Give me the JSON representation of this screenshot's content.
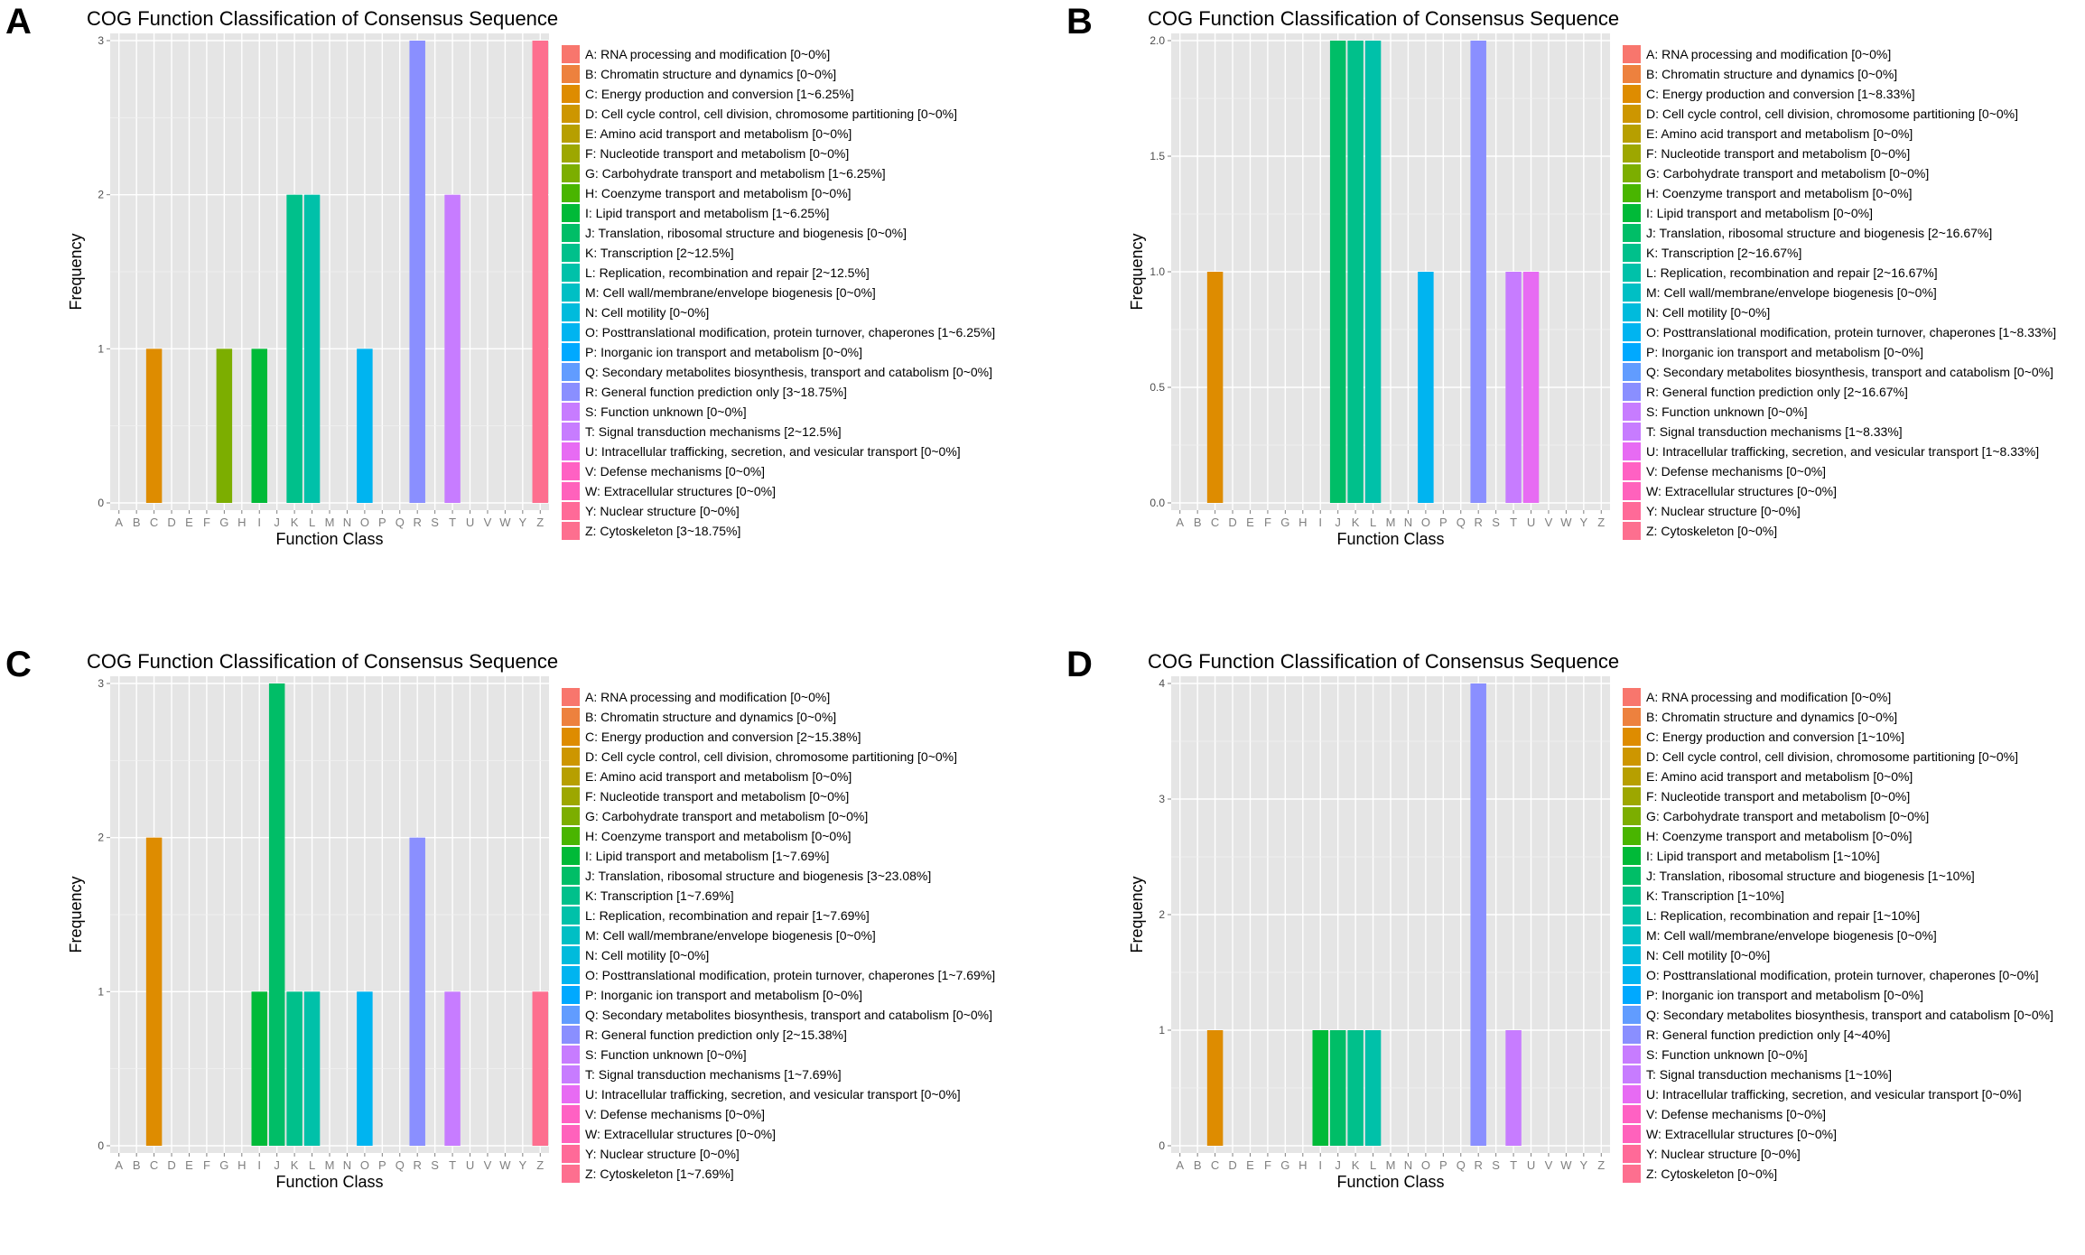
{
  "figure": {
    "colors": {
      "A": "#f8766d",
      "B": "#ed813e",
      "C": "#de8c00",
      "D": "#cd9600",
      "E": "#b79f00",
      "F": "#9da700",
      "G": "#7cae00",
      "H": "#49b500",
      "I": "#00ba38",
      "J": "#00be67",
      "K": "#00c08b",
      "L": "#00c1a9",
      "M": "#00bfc4",
      "N": "#00bbdc",
      "O": "#00b4f0",
      "P": "#00a9ff",
      "Q": "#619cff",
      "R": "#8a8fff",
      "S": "#c77cff",
      "T": "#c77cff",
      "U": "#e76bf3",
      "V": "#ff61c3",
      "W": "#ff62bc",
      "X": "#ff65ac",
      "Y": "#ff6a98",
      "Z": "#fd6f8f"
    }
  },
  "chart_data": [
    {
      "panel_letter": "A",
      "type": "bar",
      "title": "COG Function Classification of Consensus Sequence",
      "xlabel": "Function Class",
      "ylabel": "Frequency",
      "categories": [
        "A",
        "B",
        "C",
        "D",
        "E",
        "F",
        "G",
        "H",
        "I",
        "J",
        "K",
        "L",
        "M",
        "N",
        "O",
        "P",
        "Q",
        "R",
        "S",
        "T",
        "U",
        "V",
        "W",
        "Y",
        "Z"
      ],
      "values": [
        0,
        0,
        1,
        0,
        0,
        0,
        1,
        0,
        1,
        0,
        2,
        2,
        0,
        0,
        1,
        0,
        0,
        3,
        0,
        2,
        0,
        0,
        0,
        0,
        3
      ],
      "ylim": [
        0,
        3
      ],
      "yticks": [
        "0",
        "1",
        "2",
        "3"
      ],
      "legend": [
        "A: RNA processing and modification [0~0%]",
        "B: Chromatin structure and dynamics [0~0%]",
        "C: Energy production and conversion [1~6.25%]",
        "D: Cell cycle control, cell division, chromosome partitioning [0~0%]",
        "E: Amino acid transport and metabolism [0~0%]",
        "F: Nucleotide transport and metabolism [0~0%]",
        "G: Carbohydrate transport and metabolism [1~6.25%]",
        "H: Coenzyme transport and metabolism [0~0%]",
        "I: Lipid transport and metabolism [1~6.25%]",
        "J: Translation, ribosomal structure and biogenesis [0~0%]",
        "K: Transcription [2~12.5%]",
        "L: Replication, recombination and repair [2~12.5%]",
        "M: Cell wall/membrane/envelope biogenesis [0~0%]",
        "N: Cell motility [0~0%]",
        "O: Posttranslational modification, protein turnover, chaperones [1~6.25%]",
        "P: Inorganic ion transport and metabolism [0~0%]",
        "Q: Secondary metabolites biosynthesis, transport and catabolism [0~0%]",
        "R: General function prediction only [3~18.75%]",
        "S: Function unknown [0~0%]",
        "T: Signal transduction mechanisms [2~12.5%]",
        "U: Intracellular trafficking, secretion, and vesicular transport [0~0%]",
        "V: Defense mechanisms [0~0%]",
        "W: Extracellular structures [0~0%]",
        "Y: Nuclear structure [0~0%]",
        "Z: Cytoskeleton [3~18.75%]"
      ]
    },
    {
      "panel_letter": "B",
      "type": "bar",
      "title": "COG Function Classification of Consensus Sequence",
      "xlabel": "Function Class",
      "ylabel": "Frequency",
      "categories": [
        "A",
        "B",
        "C",
        "D",
        "E",
        "F",
        "G",
        "H",
        "I",
        "J",
        "K",
        "L",
        "M",
        "N",
        "O",
        "P",
        "Q",
        "R",
        "S",
        "T",
        "U",
        "V",
        "W",
        "Y",
        "Z"
      ],
      "values": [
        0,
        0,
        1,
        0,
        0,
        0,
        0,
        0,
        0,
        2,
        2,
        2,
        0,
        0,
        1,
        0,
        0,
        2,
        0,
        1,
        1,
        0,
        0,
        0,
        0
      ],
      "ylim": [
        0,
        2
      ],
      "yticks": [
        "0.0",
        "0.5",
        "1.0",
        "1.5",
        "2.0"
      ],
      "legend": [
        "A: RNA processing and modification [0~0%]",
        "B: Chromatin structure and dynamics [0~0%]",
        "C: Energy production and conversion [1~8.33%]",
        "D: Cell cycle control, cell division, chromosome partitioning [0~0%]",
        "E: Amino acid transport and metabolism [0~0%]",
        "F: Nucleotide transport and metabolism [0~0%]",
        "G: Carbohydrate transport and metabolism [0~0%]",
        "H: Coenzyme transport and metabolism [0~0%]",
        "I: Lipid transport and metabolism [0~0%]",
        "J: Translation, ribosomal structure and biogenesis [2~16.67%]",
        "K: Transcription [2~16.67%]",
        "L: Replication, recombination and repair [2~16.67%]",
        "M: Cell wall/membrane/envelope biogenesis [0~0%]",
        "N: Cell motility [0~0%]",
        "O: Posttranslational modification, protein turnover, chaperones [1~8.33%]",
        "P: Inorganic ion transport and metabolism [0~0%]",
        "Q: Secondary metabolites biosynthesis, transport and catabolism [0~0%]",
        "R: General function prediction only [2~16.67%]",
        "S: Function unknown [0~0%]",
        "T: Signal transduction mechanisms [1~8.33%]",
        "U: Intracellular trafficking, secretion, and vesicular transport [1~8.33%]",
        "V: Defense mechanisms [0~0%]",
        "W: Extracellular structures [0~0%]",
        "Y: Nuclear structure [0~0%]",
        "Z: Cytoskeleton [0~0%]"
      ]
    },
    {
      "panel_letter": "C",
      "type": "bar",
      "title": "COG Function Classification of Consensus Sequence",
      "xlabel": "Function Class",
      "ylabel": "Frequency",
      "categories": [
        "A",
        "B",
        "C",
        "D",
        "E",
        "F",
        "G",
        "H",
        "I",
        "J",
        "K",
        "L",
        "M",
        "N",
        "O",
        "P",
        "Q",
        "R",
        "S",
        "T",
        "U",
        "V",
        "W",
        "Y",
        "Z"
      ],
      "values": [
        0,
        0,
        2,
        0,
        0,
        0,
        0,
        0,
        1,
        3,
        1,
        1,
        0,
        0,
        1,
        0,
        0,
        2,
        0,
        1,
        0,
        0,
        0,
        0,
        1
      ],
      "ylim": [
        0,
        3
      ],
      "yticks": [
        "0",
        "1",
        "2",
        "3"
      ],
      "legend": [
        "A: RNA processing and modification [0~0%]",
        "B: Chromatin structure and dynamics [0~0%]",
        "C: Energy production and conversion [2~15.38%]",
        "D: Cell cycle control, cell division, chromosome partitioning [0~0%]",
        "E: Amino acid transport and metabolism [0~0%]",
        "F: Nucleotide transport and metabolism [0~0%]",
        "G: Carbohydrate transport and metabolism [0~0%]",
        "H: Coenzyme transport and metabolism [0~0%]",
        "I: Lipid transport and metabolism [1~7.69%]",
        "J: Translation, ribosomal structure and biogenesis [3~23.08%]",
        "K: Transcription [1~7.69%]",
        "L: Replication, recombination and repair [1~7.69%]",
        "M: Cell wall/membrane/envelope biogenesis [0~0%]",
        "N: Cell motility [0~0%]",
        "O: Posttranslational modification, protein turnover, chaperones [1~7.69%]",
        "P: Inorganic ion transport and metabolism [0~0%]",
        "Q: Secondary metabolites biosynthesis, transport and catabolism [0~0%]",
        "R: General function prediction only [2~15.38%]",
        "S: Function unknown [0~0%]",
        "T: Signal transduction mechanisms [1~7.69%]",
        "U: Intracellular trafficking, secretion, and vesicular transport [0~0%]",
        "V: Defense mechanisms [0~0%]",
        "W: Extracellular structures [0~0%]",
        "Y: Nuclear structure [0~0%]",
        "Z: Cytoskeleton [1~7.69%]"
      ]
    },
    {
      "panel_letter": "D",
      "type": "bar",
      "title": "COG Function Classification of Consensus Sequence",
      "xlabel": "Function Class",
      "ylabel": "Frequency",
      "categories": [
        "A",
        "B",
        "C",
        "D",
        "E",
        "F",
        "G",
        "H",
        "I",
        "J",
        "K",
        "L",
        "M",
        "N",
        "O",
        "P",
        "Q",
        "R",
        "S",
        "T",
        "U",
        "V",
        "W",
        "Y",
        "Z"
      ],
      "values": [
        0,
        0,
        1,
        0,
        0,
        0,
        0,
        0,
        1,
        1,
        1,
        1,
        0,
        0,
        0,
        0,
        0,
        4,
        0,
        1,
        0,
        0,
        0,
        0,
        0
      ],
      "ylim": [
        0,
        4
      ],
      "yticks": [
        "0",
        "1",
        "2",
        "3",
        "4"
      ],
      "legend": [
        "A: RNA processing and modification [0~0%]",
        "B: Chromatin structure and dynamics [0~0%]",
        "C: Energy production and conversion [1~10%]",
        "D: Cell cycle control, cell division, chromosome partitioning [0~0%]",
        "E: Amino acid transport and metabolism [0~0%]",
        "F: Nucleotide transport and metabolism [0~0%]",
        "G: Carbohydrate transport and metabolism [0~0%]",
        "H: Coenzyme transport and metabolism [0~0%]",
        "I: Lipid transport and metabolism [1~10%]",
        "J: Translation, ribosomal structure and biogenesis [1~10%]",
        "K: Transcription [1~10%]",
        "L: Replication, recombination and repair [1~10%]",
        "M: Cell wall/membrane/envelope biogenesis [0~0%]",
        "N: Cell motility [0~0%]",
        "O: Posttranslational modification, protein turnover, chaperones [0~0%]",
        "P: Inorganic ion transport and metabolism [0~0%]",
        "Q: Secondary metabolites biosynthesis, transport and catabolism [0~0%]",
        "R: General function prediction only [4~40%]",
        "S: Function unknown [0~0%]",
        "T: Signal transduction mechanisms [1~10%]",
        "U: Intracellular trafficking, secretion, and vesicular transport [0~0%]",
        "V: Defense mechanisms [0~0%]",
        "W: Extracellular structures [0~0%]",
        "Y: Nuclear structure [0~0%]",
        "Z: Cytoskeleton [0~0%]"
      ]
    }
  ]
}
